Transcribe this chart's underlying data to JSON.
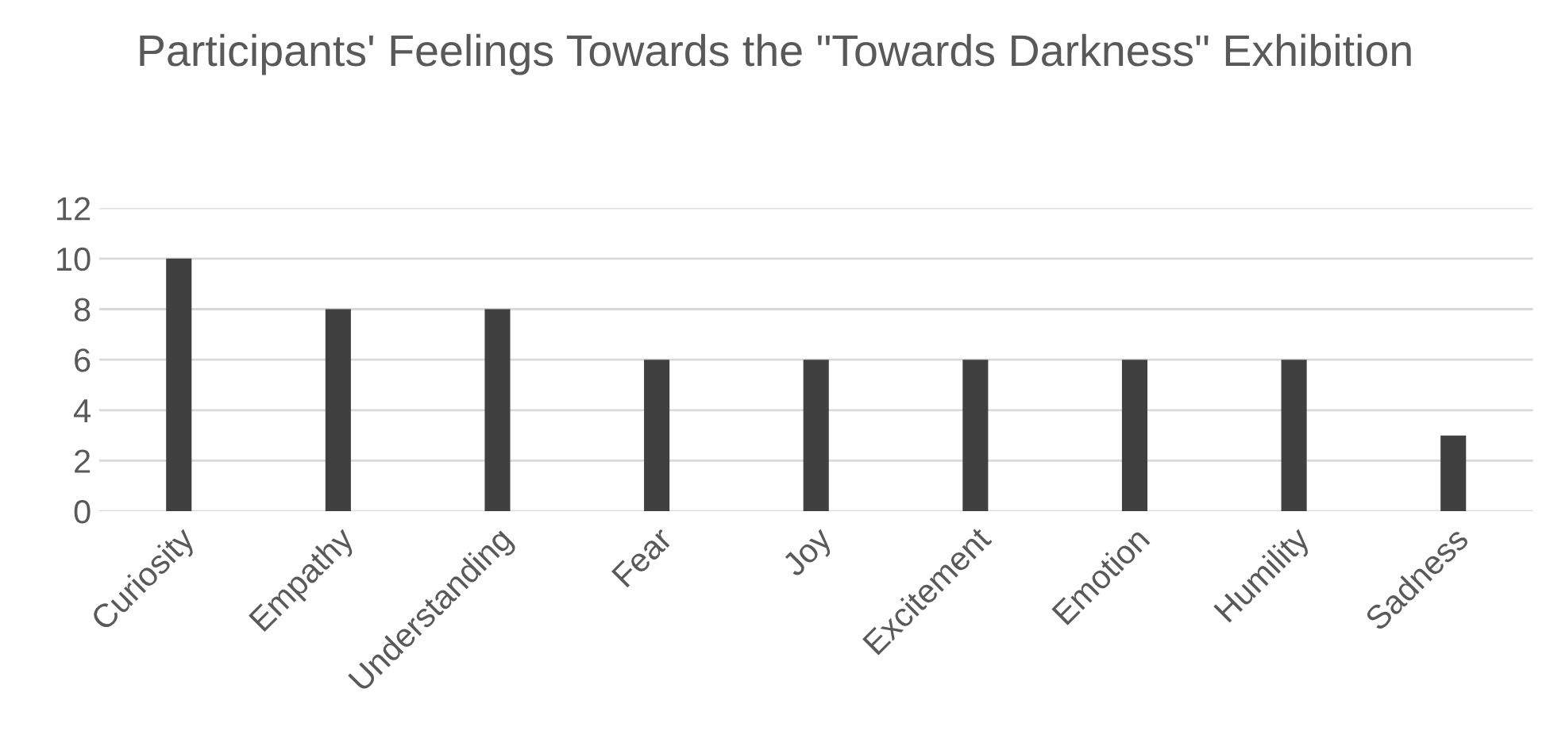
{
  "chart_data": {
    "type": "bar",
    "title": "Participants' Feelings Towards the \"Towards Darkness\" Exhibition",
    "categories": [
      "Curiosity",
      "Empathy",
      "Understanding",
      "Fear",
      "Joy",
      "Excitement",
      "Emotion",
      "Humility",
      "Sadness"
    ],
    "values": [
      10,
      8,
      8,
      6,
      6,
      6,
      6,
      6,
      3
    ],
    "color": "#404040",
    "ylim": [
      0,
      12
    ],
    "yticks": [
      0,
      2,
      4,
      6,
      8,
      10,
      12
    ],
    "grid": "y"
  }
}
